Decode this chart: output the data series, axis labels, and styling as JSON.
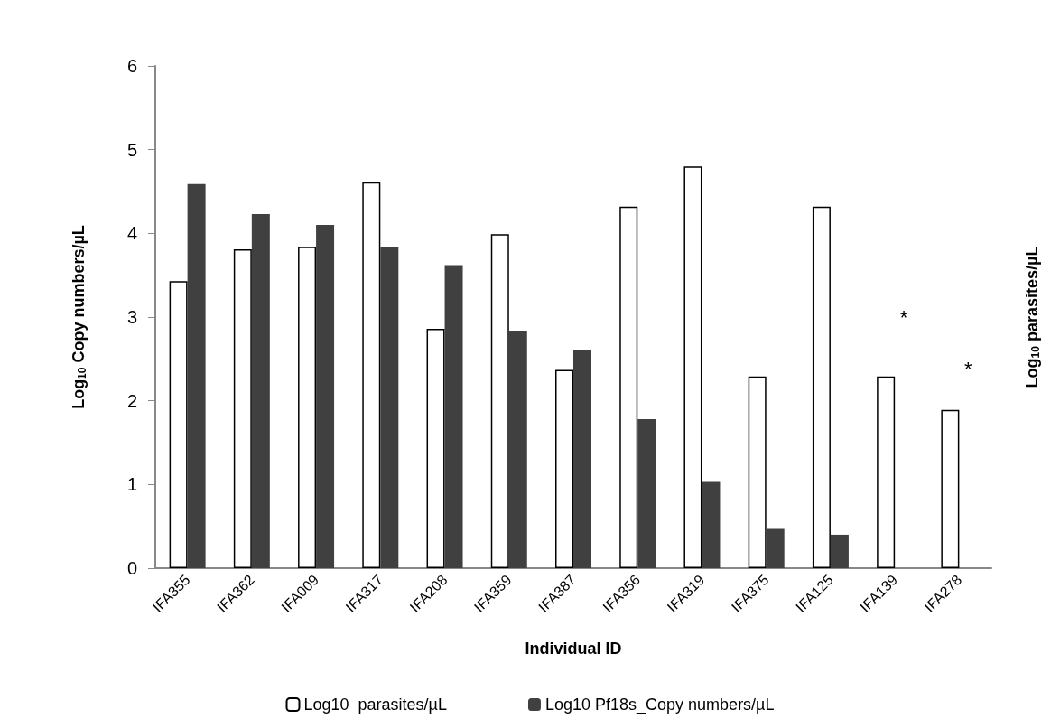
{
  "chart_data": {
    "type": "bar",
    "categories": [
      "IFA355",
      "IFA362",
      "IFA009",
      "IFA317",
      "IFA208",
      "IFA359",
      "IFA387",
      "IFA356",
      "IFA319",
      "IFA375",
      "IFA125",
      "IFA139",
      "IFA278"
    ],
    "series": [
      {
        "name": "Log10  parasites/µL",
        "color": "#ffffff",
        "values": [
          3.43,
          3.81,
          3.84,
          4.61,
          2.86,
          3.99,
          2.37,
          4.32,
          4.8,
          2.29,
          4.32,
          2.29,
          1.89
        ]
      },
      {
        "name": "Log10 Pf18s_Copy numbers/µL",
        "color": "#404040",
        "values": [
          4.59,
          4.23,
          4.1,
          3.83,
          3.62,
          2.83,
          2.61,
          1.78,
          1.03,
          0.47,
          0.4,
          null,
          null
        ]
      }
    ],
    "xlabel": "Individual ID",
    "ylabel": "Log$_{10}$ Copy numbers/µL",
    "y2label": "Log$_{10}$ parasites/µL",
    "ylim": [
      0,
      6
    ],
    "yticks": [
      0,
      1,
      2,
      3,
      4,
      5,
      6
    ],
    "annotations": [
      "*",
      "*"
    ],
    "grid": false,
    "legend": "bottom"
  }
}
